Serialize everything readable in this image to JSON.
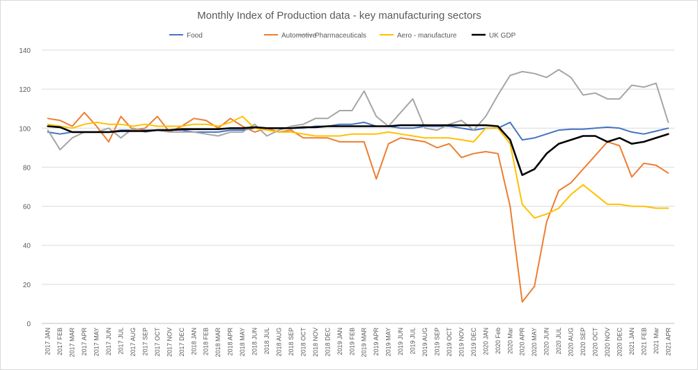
{
  "chart_data": {
    "type": "line",
    "title": "Monthly Index of Production data  - key manufacturing sectors",
    "xlabel": "",
    "ylabel": "",
    "ylim": [
      0,
      140
    ],
    "yticks": [
      0,
      20,
      40,
      60,
      80,
      100,
      120,
      140
    ],
    "grid": true,
    "legend_position": "top",
    "categories": [
      "2017 JAN",
      "2017 FEB",
      "2017 MAR",
      "2017 APR",
      "2017 MAY",
      "2017 JUN",
      "2017 JUL",
      "2017 AUG",
      "2017 SEP",
      "2017 OCT",
      "2017 NOV",
      "2017 DEC",
      "2018 JAN",
      "2018 FEB",
      "2018 MAR",
      "2018 APR",
      "2018 MAY",
      "2018 JUN",
      "2018 JUL",
      "2018 AUG",
      "2018 SEP",
      "2018 OCT",
      "2018 NOV",
      "2018 DEC",
      "2019 JAN",
      "2019 FEB",
      "2019 MAR",
      "2019 APR",
      "2019 MAY",
      "2019 JUN",
      "2019 JUL",
      "2019 AUG",
      "2019 SEP",
      "2019 OCT",
      "2019 NOV",
      "2019 DEC",
      "2020 JAN",
      "2020 Feb",
      "2020 Mar",
      "2020 APR",
      "2020 MAY",
      "2020 JUN",
      "2020 JUL",
      "2020 AUG",
      "2020 SEP",
      "2020 OCT",
      "2020 NOV",
      "2020 DEC",
      "2021 JAN",
      "2021 FEB",
      "2021 Mar",
      "2021 APR"
    ],
    "series": [
      {
        "name": "Food",
        "color": "#4472C4",
        "values": [
          98,
          97,
          98,
          98,
          98,
          98,
          99,
          99,
          99,
          99,
          99,
          99,
          98,
          98,
          98,
          99,
          99,
          100,
          100,
          100,
          100,
          100,
          101,
          101,
          102,
          102,
          103,
          101,
          101,
          100,
          100,
          101,
          101,
          101,
          100,
          99,
          100,
          100,
          103,
          94,
          95,
          97,
          99,
          99.5,
          99.5,
          100,
          100.5,
          100,
          98,
          97,
          98.5,
          100
        ]
      },
      {
        "name": "Automotive",
        "color": "#ED7D31",
        "values": [
          105,
          104,
          101,
          108,
          101,
          93,
          106,
          99,
          100,
          106,
          98,
          101,
          105,
          104,
          100,
          105,
          101,
          98,
          100,
          98,
          99,
          95,
          95,
          95,
          93,
          93,
          93,
          74,
          92,
          95,
          94,
          93,
          90,
          92,
          85,
          87,
          88,
          87,
          60,
          11,
          19,
          52,
          68,
          72,
          79,
          86,
          93,
          91,
          75,
          82,
          81,
          77
        ]
      },
      {
        "name": "Pharmaceuticals",
        "color": "#A5A5A5",
        "values": [
          99,
          89,
          95,
          98,
          98,
          100,
          95,
          100,
          98,
          99,
          98,
          98,
          98,
          97,
          96,
          98,
          98,
          102,
          96,
          99,
          101,
          102,
          105,
          105,
          109,
          109,
          119,
          106,
          101,
          108,
          115,
          100,
          99,
          102,
          104,
          99,
          106,
          117,
          127,
          129,
          128,
          126,
          130,
          126,
          117,
          118,
          115,
          115,
          122,
          121,
          123,
          103
        ]
      },
      {
        "name": "Aero - manufacture",
        "color": "#FFC000",
        "values": [
          102,
          101,
          100,
          102,
          103,
          102,
          102,
          101,
          102,
          101,
          101,
          101,
          102,
          102,
          101,
          103,
          106,
          100,
          99,
          98,
          98,
          97,
          96,
          96,
          96,
          97,
          97,
          97,
          98,
          97,
          96,
          95,
          95,
          95,
          94,
          93,
          100,
          100,
          92,
          61,
          54,
          56,
          59,
          66,
          71,
          66,
          61,
          61,
          60,
          60,
          59,
          59
        ]
      },
      {
        "name": "UK GDP",
        "color": "#000000",
        "values": [
          101,
          100.5,
          98,
          98,
          98,
          98,
          98.5,
          98.5,
          98.5,
          99,
          99,
          99.5,
          99.5,
          99.5,
          99.5,
          100,
          100,
          100.5,
          100,
          100,
          100,
          100.5,
          100.5,
          101,
          101,
          101,
          101,
          101,
          101,
          101.5,
          101.5,
          101.5,
          101.5,
          101.5,
          101.5,
          101.5,
          101.5,
          101,
          94,
          76,
          79,
          87,
          92,
          94,
          96,
          96,
          93,
          95,
          92,
          93,
          95,
          97
        ]
      }
    ]
  }
}
